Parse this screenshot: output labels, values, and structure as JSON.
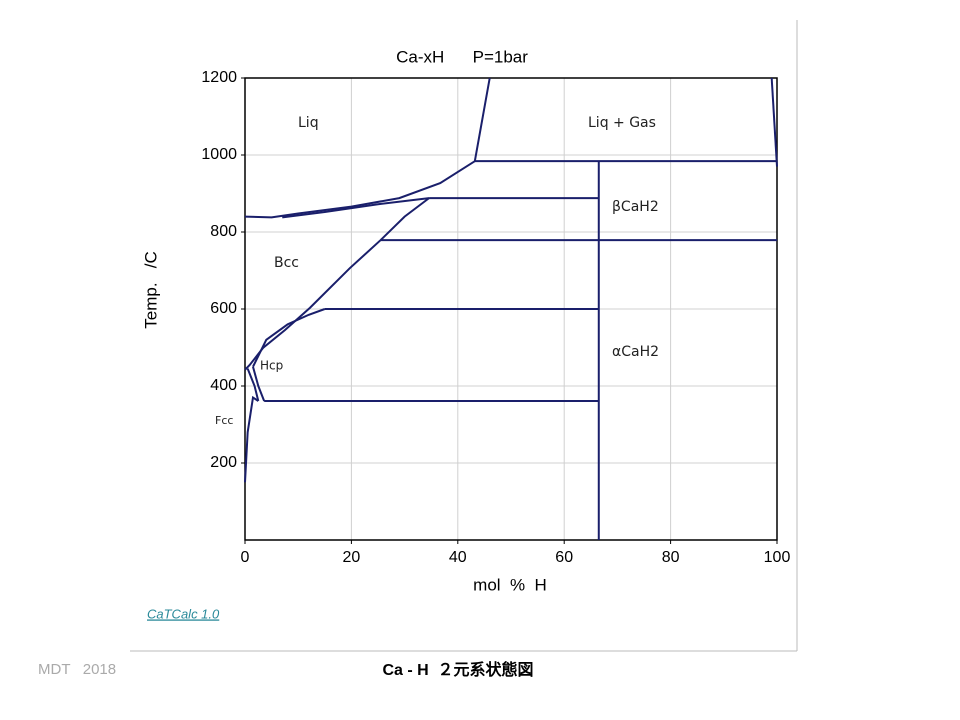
{
  "chart_data": {
    "type": "line",
    "title": "Ca-xH      P=1bar",
    "xlabel": "mol  %  H",
    "ylabel": "Temp.   /C",
    "xlim": [
      0,
      100
    ],
    "ylim": [
      0,
      1200
    ],
    "xticks": [
      0,
      20,
      40,
      60,
      80,
      100
    ],
    "yticks": [
      200,
      400,
      600,
      800,
      1000,
      1200
    ],
    "grid": true,
    "color": "#1a1f6b",
    "annotations": [
      "Liq",
      "Liq + Gas",
      "βCaH2",
      "Bcc",
      "αCaH2",
      "Hcp",
      "Fcc"
    ],
    "series": [
      {
        "x": [
          0,
          5,
          10,
          20,
          29,
          36.7,
          43.2,
          46
        ],
        "values": [
          840,
          838,
          848,
          866,
          888,
          927,
          984,
          1200
        ]
      },
      {
        "x": [
          7,
          15,
          25,
          34.6
        ],
        "values": [
          838,
          852,
          872,
          888
        ]
      },
      {
        "x": [
          34.6,
          66.5
        ],
        "values": [
          888,
          888
        ]
      },
      {
        "x": [
          43.2,
          100
        ],
        "values": [
          984,
          984
        ]
      },
      {
        "x": [
          25.5,
          100
        ],
        "values": [
          779,
          779
        ]
      },
      {
        "x": [
          15,
          66.5
        ],
        "values": [
          600,
          600
        ]
      },
      {
        "x": [
          3.6,
          66.5
        ],
        "values": [
          361,
          361
        ]
      },
      {
        "x": [
          66.5,
          66.5
        ],
        "values": [
          0,
          984
        ]
      },
      {
        "x": [
          34.6,
          30,
          25.5,
          19.7,
          12.2,
          7.5,
          3.4,
          0.9,
          0
        ],
        "values": [
          888,
          840,
          779,
          706,
          603,
          545,
          499,
          455,
          442
        ]
      },
      {
        "x": [
          15,
          12,
          8,
          4,
          1.5
        ],
        "values": [
          600,
          585,
          560,
          520,
          450
        ]
      },
      {
        "x": [
          1.5,
          2.5,
          3.6
        ],
        "values": [
          450,
          400,
          361
        ]
      },
      {
        "x": [
          0.5,
          1.8,
          2.5
        ],
        "values": [
          445,
          400,
          361
        ]
      },
      {
        "x": [
          0,
          0.5,
          1.5,
          2.5
        ],
        "values": [
          150,
          280,
          370,
          361
        ]
      },
      {
        "x": [
          99,
          100
        ],
        "values": [
          1200,
          970
        ]
      }
    ]
  },
  "footer": {
    "software": "CaTCalc 1.0",
    "credit": "MDT   2018",
    "caption": "Ca - H  ２元系状態図"
  }
}
